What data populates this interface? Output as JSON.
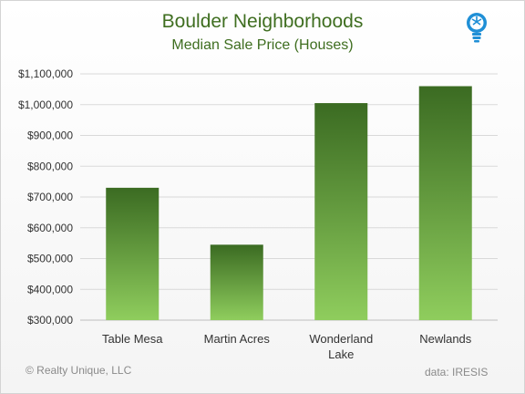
{
  "chart_data": {
    "type": "bar",
    "title": "Boulder Neighborhoods",
    "subtitle": "Median Sale Price (Houses)",
    "categories": [
      "Table Mesa",
      "Martin Acres",
      "Wonderland Lake",
      "Newlands"
    ],
    "category_lines": [
      [
        "Table Mesa"
      ],
      [
        "Martin Acres"
      ],
      [
        "Wonderland",
        "Lake"
      ],
      [
        "Newlands"
      ]
    ],
    "values": [
      730000,
      545000,
      1005000,
      1060000
    ],
    "ylim": [
      300000,
      1100000
    ],
    "ytick_values": [
      300000,
      400000,
      500000,
      600000,
      700000,
      800000,
      900000,
      1000000,
      1100000
    ],
    "ytick_labels": [
      "$300,000",
      "$400,000",
      "$500,000",
      "$600,000",
      "$700,000",
      "$800,000",
      "$900,000",
      "$1,000,000",
      "$1,100,000"
    ],
    "xlabel": "",
    "ylabel": "",
    "grid": true,
    "legend": "none"
  },
  "footer": {
    "copyright": "© Realty Unique, LLC",
    "source": "data: IRESIS"
  },
  "colors": {
    "title": "#3f6e20",
    "bar_top": "#3b6b22",
    "bar_bottom": "#8fcd5d",
    "gridline": "#d9d9d9",
    "logo": "#1f8fd6"
  },
  "icons": {
    "logo": "lightbulb-icon"
  }
}
